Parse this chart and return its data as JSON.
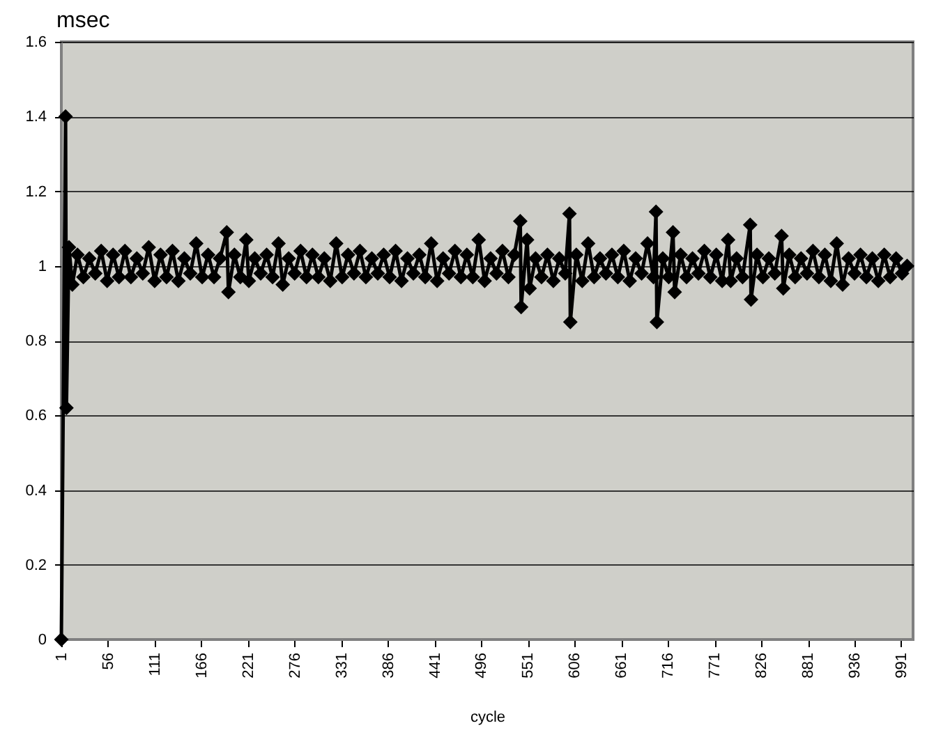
{
  "chart_data": {
    "type": "line",
    "ylabel": "msec",
    "xlabel": "cycle",
    "xlim": [
      1,
      1005
    ],
    "xticks": [
      1,
      56,
      111,
      166,
      221,
      276,
      331,
      386,
      441,
      496,
      551,
      606,
      661,
      716,
      771,
      826,
      881,
      936,
      991
    ],
    "ylim": [
      0,
      1.6
    ],
    "yticks": [
      0,
      0.2,
      0.4,
      0.6,
      0.8,
      1,
      1.2,
      1.4,
      1.6
    ],
    "grid": "y",
    "marker": "diamond",
    "line_style": "solid",
    "series": [
      {
        "color": "#000000",
        "x": [
          1,
          6,
          7,
          10,
          14,
          20,
          27,
          34,
          41,
          48,
          55,
          62,
          69,
          76,
          83,
          90,
          97,
          104,
          111,
          118,
          125,
          132,
          139,
          146,
          153,
          160,
          167,
          174,
          181,
          188,
          196,
          198,
          205,
          212,
          219,
          222,
          229,
          236,
          243,
          250,
          257,
          262,
          269,
          276,
          283,
          290,
          297,
          304,
          311,
          318,
          325,
          332,
          339,
          346,
          353,
          360,
          367,
          374,
          381,
          388,
          395,
          402,
          409,
          416,
          423,
          430,
          437,
          444,
          451,
          458,
          465,
          472,
          479,
          486,
          493,
          500,
          507,
          514,
          521,
          528,
          535,
          542,
          543,
          550,
          553,
          560,
          567,
          574,
          581,
          588,
          595,
          600,
          601,
          608,
          615,
          622,
          629,
          636,
          643,
          650,
          657,
          664,
          671,
          678,
          685,
          692,
          699,
          702,
          703,
          710,
          717,
          722,
          724,
          731,
          738,
          745,
          752,
          759,
          766,
          773,
          780,
          787,
          790,
          797,
          804,
          813,
          814,
          821,
          828,
          835,
          842,
          850,
          852,
          859,
          866,
          873,
          880,
          887,
          894,
          901,
          908,
          915,
          922,
          929,
          936,
          943,
          950,
          957,
          964,
          971,
          978,
          985,
          992,
          998
        ],
        "values": [
          0,
          1.4,
          0.62,
          1.05,
          0.95,
          1.03,
          0.97,
          1.02,
          0.98,
          1.04,
          0.96,
          1.03,
          0.97,
          1.04,
          0.97,
          1.02,
          0.98,
          1.05,
          0.96,
          1.03,
          0.97,
          1.04,
          0.96,
          1.02,
          0.98,
          1.06,
          0.97,
          1.03,
          0.97,
          1.02,
          1.09,
          0.93,
          1.03,
          0.97,
          1.07,
          0.96,
          1.02,
          0.98,
          1.03,
          0.97,
          1.06,
          0.95,
          1.02,
          0.98,
          1.04,
          0.97,
          1.03,
          0.97,
          1.02,
          0.96,
          1.06,
          0.97,
          1.03,
          0.98,
          1.04,
          0.97,
          1.02,
          0.98,
          1.03,
          0.97,
          1.04,
          0.96,
          1.02,
          0.98,
          1.03,
          0.97,
          1.06,
          0.96,
          1.02,
          0.98,
          1.04,
          0.97,
          1.03,
          0.97,
          1.07,
          0.96,
          1.02,
          0.98,
          1.04,
          0.97,
          1.03,
          1.12,
          0.89,
          1.07,
          0.94,
          1.02,
          0.97,
          1.03,
          0.96,
          1.02,
          0.98,
          1.14,
          0.85,
          1.03,
          0.96,
          1.06,
          0.97,
          1.02,
          0.98,
          1.03,
          0.97,
          1.04,
          0.96,
          1.02,
          0.98,
          1.06,
          0.97,
          1.145,
          0.85,
          1.02,
          0.97,
          1.09,
          0.93,
          1.03,
          0.97,
          1.02,
          0.98,
          1.04,
          0.97,
          1.03,
          0.96,
          1.07,
          0.96,
          1.02,
          0.97,
          1.11,
          0.91,
          1.03,
          0.97,
          1.02,
          0.98,
          1.08,
          0.94,
          1.03,
          0.97,
          1.02,
          0.98,
          1.04,
          0.97,
          1.03,
          0.96,
          1.06,
          0.95,
          1.02,
          0.98,
          1.03,
          0.97,
          1.02,
          0.96,
          1.03,
          0.97,
          1.02,
          0.98,
          1.0
        ]
      }
    ]
  }
}
